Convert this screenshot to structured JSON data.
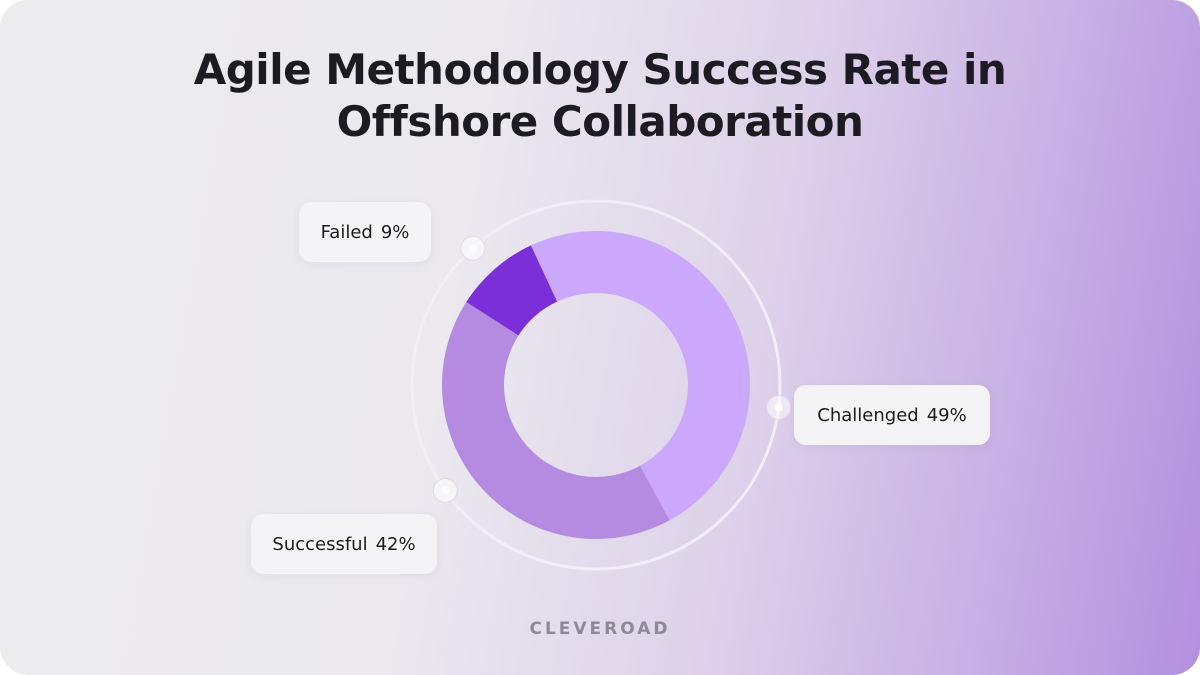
{
  "title_line1": "Agile Methodology Success Rate in",
  "title_line2": "Offshore Collaboration",
  "brand": "CLEVEROAD",
  "chart_data": {
    "type": "pie",
    "variant": "donut",
    "categories": [
      "Challenged",
      "Successful",
      "Failed"
    ],
    "values": [
      49,
      42,
      9
    ],
    "labels": [
      "Challenged 49%",
      "Successful 42%",
      "Failed 9%"
    ],
    "colors": [
      "#cba8fb",
      "#b48be0",
      "#7a2fd8"
    ],
    "ring_color": "#f2eef7"
  },
  "labels": {
    "failed": {
      "name": "Failed",
      "value": "9%"
    },
    "challenged": {
      "name": "Challenged",
      "value": "49%"
    },
    "successful": {
      "name": "Successful",
      "value": "42%"
    }
  }
}
